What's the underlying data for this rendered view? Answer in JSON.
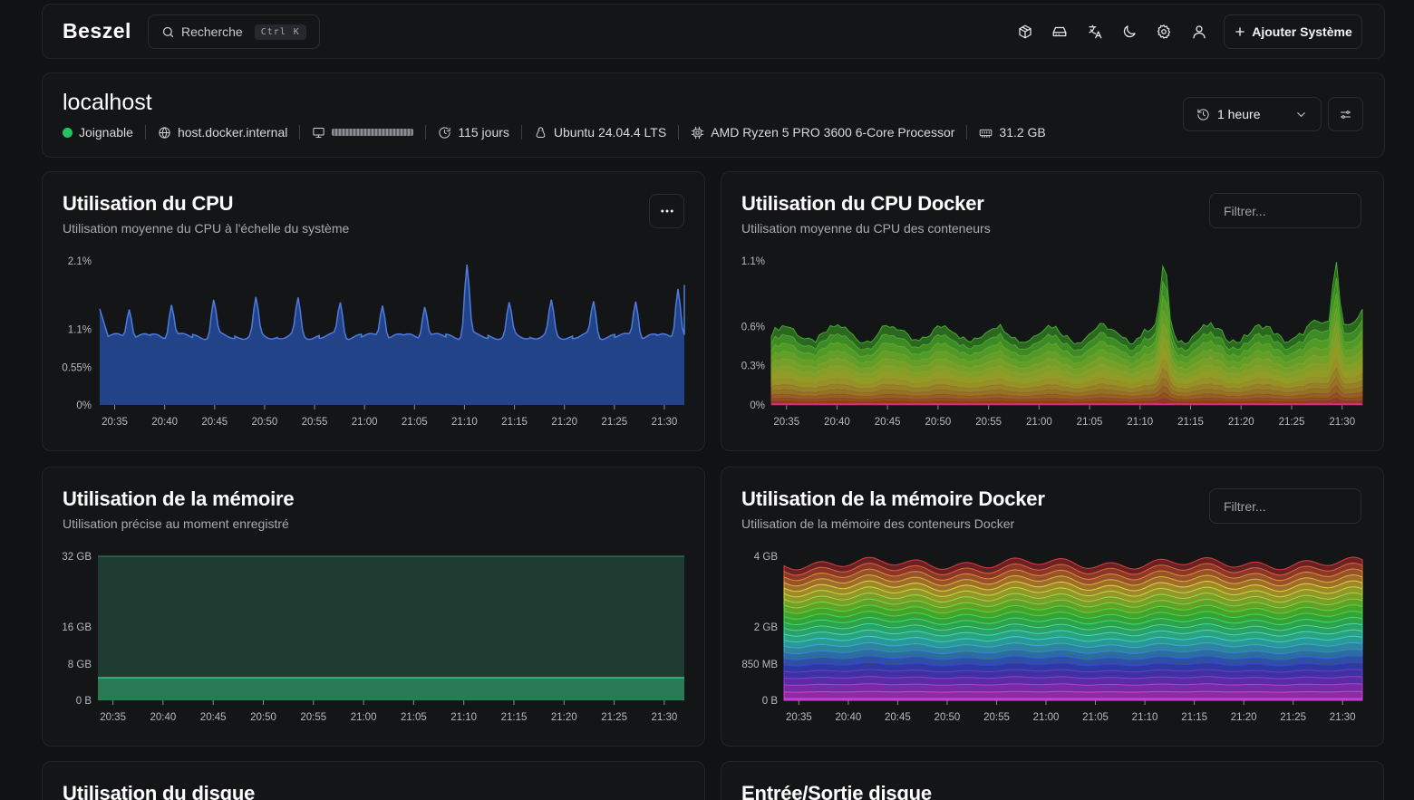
{
  "header": {
    "logo": "Beszel",
    "search": {
      "label": "Recherche",
      "shortcut_key1": "Ctrl",
      "shortcut_key2": "K"
    },
    "icons": [
      "containers-icon",
      "hard-drive-icon",
      "language-icon",
      "theme-moon-icon",
      "settings-gear-icon",
      "user-icon"
    ],
    "add_button": "Ajouter Système"
  },
  "system": {
    "name": "localhost",
    "status": "Joignable",
    "status_color": "#22c55e",
    "host": "host.docker.internal",
    "uptime": "115 jours",
    "os": "Ubuntu 24.04.4 LTS",
    "cpu": "AMD Ryzen 5 PRO 3600 6-Core Processor",
    "memory": "31.2 GB",
    "time_range": "1 heure"
  },
  "charts": {
    "cpu": {
      "title": "Utilisation du CPU",
      "subtitle": "Utilisation moyenne du CPU à l'échelle du système",
      "chart_data": {
        "type": "area",
        "x": [
          "20:35",
          "20:40",
          "20:45",
          "20:50",
          "20:55",
          "21:00",
          "21:05",
          "21:10",
          "21:15",
          "21:20",
          "21:25",
          "21:30"
        ],
        "y_ticks": [
          "2.1%",
          "1.1%",
          "0.55%",
          "0%"
        ],
        "ylim": [
          0,
          2.1
        ],
        "unit": "%",
        "baseline": 1.0,
        "peaks": [
          1.45,
          1.5,
          1.52,
          1.52,
          1.52,
          1.5,
          1.5,
          1.48,
          2.05,
          1.45,
          1.48,
          1.5,
          1.55,
          1.75
        ],
        "color": "#2a4f9e"
      }
    },
    "cpu_docker": {
      "title": "Utilisation du CPU Docker",
      "subtitle": "Utilisation moyenne du CPU des conteneurs",
      "filter_placeholder": "Filtrer...",
      "chart_data": {
        "type": "area",
        "x": [
          "20:35",
          "20:40",
          "20:45",
          "20:50",
          "20:55",
          "21:00",
          "21:05",
          "21:10",
          "21:15",
          "21:20",
          "21:25",
          "21:30"
        ],
        "y_ticks": [
          "1.1%",
          "0.6%",
          "0.3%",
          "0%"
        ],
        "ylim": [
          0,
          1.1
        ],
        "stacked": true,
        "total_level": 0.55,
        "spikes_at": [
          "21:13",
          "21:30"
        ],
        "spike_level": 1.08
      }
    },
    "memory": {
      "title": "Utilisation de la mémoire",
      "subtitle": "Utilisation précise au moment enregistré",
      "chart_data": {
        "type": "area",
        "x": [
          "20:35",
          "20:40",
          "20:45",
          "20:50",
          "20:55",
          "21:00",
          "21:05",
          "21:10",
          "21:15",
          "21:20",
          "21:25",
          "21:30"
        ],
        "y_ticks": [
          "32 GB",
          "16 GB",
          "8 GB",
          "0 B"
        ],
        "series": [
          {
            "name": "used",
            "value": 5.0,
            "color": "#2b7a56"
          },
          {
            "name": "total",
            "value": 32,
            "color": "#1d3b31"
          }
        ]
      }
    },
    "memory_docker": {
      "title": "Utilisation de la mémoire Docker",
      "subtitle": "Utilisation de la mémoire des conteneurs Docker",
      "filter_placeholder": "Filtrer...",
      "chart_data": {
        "type": "area",
        "stacked": true,
        "x": [
          "20:35",
          "20:40",
          "20:45",
          "20:50",
          "20:55",
          "21:00",
          "21:05",
          "21:10",
          "21:15",
          "21:20",
          "21:25",
          "21:30"
        ],
        "y_ticks": [
          "4 GB",
          "2 GB",
          "850 MB",
          "0 B"
        ],
        "total_level_gb": 3.8
      }
    },
    "disk": {
      "title": "Utilisation du disque"
    },
    "disk_io": {
      "title": "Entrée/Sortie disque"
    }
  }
}
